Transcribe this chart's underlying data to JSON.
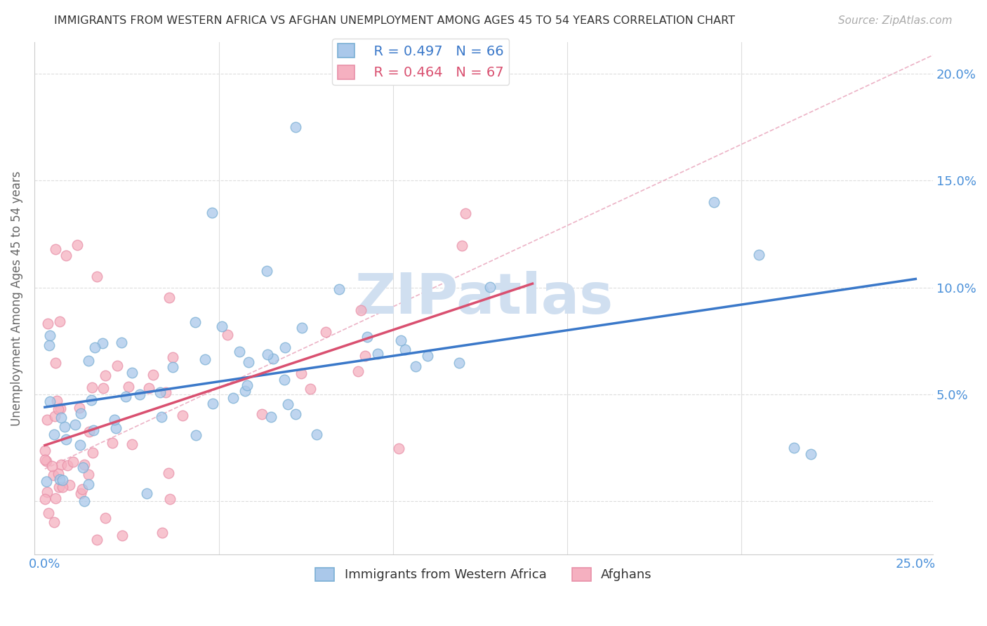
{
  "title": "IMMIGRANTS FROM WESTERN AFRICA VS AFGHAN UNEMPLOYMENT AMONG AGES 45 TO 54 YEARS CORRELATION CHART",
  "source": "Source: ZipAtlas.com",
  "ylabel": "Unemployment Among Ages 45 to 54 years",
  "xlim": [
    -0.003,
    0.255
  ],
  "ylim": [
    -0.025,
    0.215
  ],
  "xticks": [
    0.0,
    0.05,
    0.1,
    0.15,
    0.2,
    0.25
  ],
  "yticks": [
    0.0,
    0.05,
    0.1,
    0.15,
    0.2
  ],
  "xticklabels": [
    "0.0%",
    "",
    "",
    "",
    "",
    "25.0%"
  ],
  "yticklabels_right": [
    "",
    "5.0%",
    "10.0%",
    "15.0%",
    "20.0%"
  ],
  "blue_R": "R = 0.497",
  "blue_N": "N = 66",
  "pink_R": "R = 0.464",
  "pink_N": "N = 67",
  "blue_face_color": "#aac8ea",
  "blue_edge_color": "#7aafd4",
  "pink_face_color": "#f5b0c0",
  "pink_edge_color": "#e890a8",
  "blue_line_color": "#3a78c9",
  "pink_line_color": "#d95070",
  "ref_line_color": "#e0a0b0",
  "watermark_color": "#d0dff0",
  "background_color": "#ffffff"
}
